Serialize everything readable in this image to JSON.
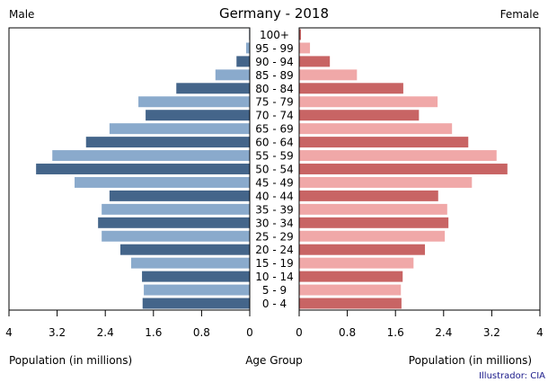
{
  "chart_data": {
    "type": "bar",
    "title": "Germany - 2018",
    "left_label": "Male",
    "right_label": "Female",
    "xlabel_left": "Population (in millions)",
    "xlabel_center": "Age Group",
    "xlabel_right": "Population (in millions)",
    "credit": "Illustrador: CIA",
    "xlim": [
      0,
      4
    ],
    "ticks": [
      "4",
      "3.2",
      "2.4",
      "1.6",
      "0.8",
      "0"
    ],
    "ticks_right": [
      "0",
      "0.8",
      "1.6",
      "2.4",
      "3.2",
      "4"
    ],
    "categories": [
      "0 - 4",
      "5 - 9",
      "10 - 14",
      "15 - 19",
      "20 - 24",
      "25 - 29",
      "30 - 34",
      "35 - 39",
      "40 - 44",
      "45 - 49",
      "50 - 54",
      "55 - 59",
      "60 - 64",
      "65 - 69",
      "70 - 74",
      "75 - 79",
      "80 - 84",
      "85 - 89",
      "90 - 94",
      "95 - 99",
      "100+"
    ],
    "series": [
      {
        "name": "Male",
        "values": [
          1.78,
          1.76,
          1.79,
          1.97,
          2.15,
          2.46,
          2.52,
          2.46,
          2.33,
          2.91,
          3.55,
          3.28,
          2.72,
          2.33,
          1.73,
          1.85,
          1.22,
          0.57,
          0.22,
          0.06,
          0.01
        ],
        "colors": [
          "#44658a",
          "#8aaacc"
        ]
      },
      {
        "name": "Female",
        "values": [
          1.7,
          1.69,
          1.72,
          1.9,
          2.09,
          2.42,
          2.48,
          2.46,
          2.31,
          2.87,
          3.46,
          3.28,
          2.81,
          2.54,
          1.99,
          2.3,
          1.73,
          0.96,
          0.51,
          0.18,
          0.03
        ],
        "colors": [
          "#c86464",
          "#f0a8a8"
        ]
      }
    ]
  }
}
